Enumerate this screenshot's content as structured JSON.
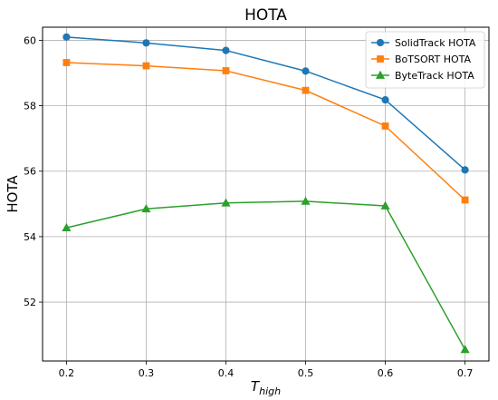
{
  "chart_data": {
    "type": "line",
    "title": "HOTA",
    "xlabel_main": "T",
    "xlabel_sub": "high",
    "ylabel": "HOTA",
    "x": [
      0.2,
      0.3,
      0.4,
      0.5,
      0.6,
      0.7
    ],
    "x_tick_labels": [
      "0.2",
      "0.3",
      "0.4",
      "0.5",
      "0.6",
      "0.7"
    ],
    "xlim": [
      0.17,
      0.73
    ],
    "y_ticks": [
      52,
      54,
      56,
      58,
      60
    ],
    "y_tick_labels": [
      "52",
      "54",
      "56",
      "58",
      "60"
    ],
    "ylim": [
      50.2,
      60.4
    ],
    "grid": true,
    "legend_position": "top-right",
    "series": [
      {
        "name": "SolidTrack HOTA",
        "color": "#1f77b4",
        "marker": "circle",
        "values": [
          60.1,
          59.92,
          59.69,
          59.06,
          58.18,
          56.04
        ]
      },
      {
        "name": "BoTSORT HOTA",
        "color": "#ff7f0e",
        "marker": "square",
        "values": [
          59.32,
          59.22,
          59.07,
          58.47,
          57.38,
          55.12
        ]
      },
      {
        "name": "ByteTrack HOTA",
        "color": "#2ca02c",
        "marker": "triangle",
        "values": [
          54.27,
          54.85,
          55.03,
          55.08,
          54.94,
          50.55
        ]
      }
    ]
  }
}
